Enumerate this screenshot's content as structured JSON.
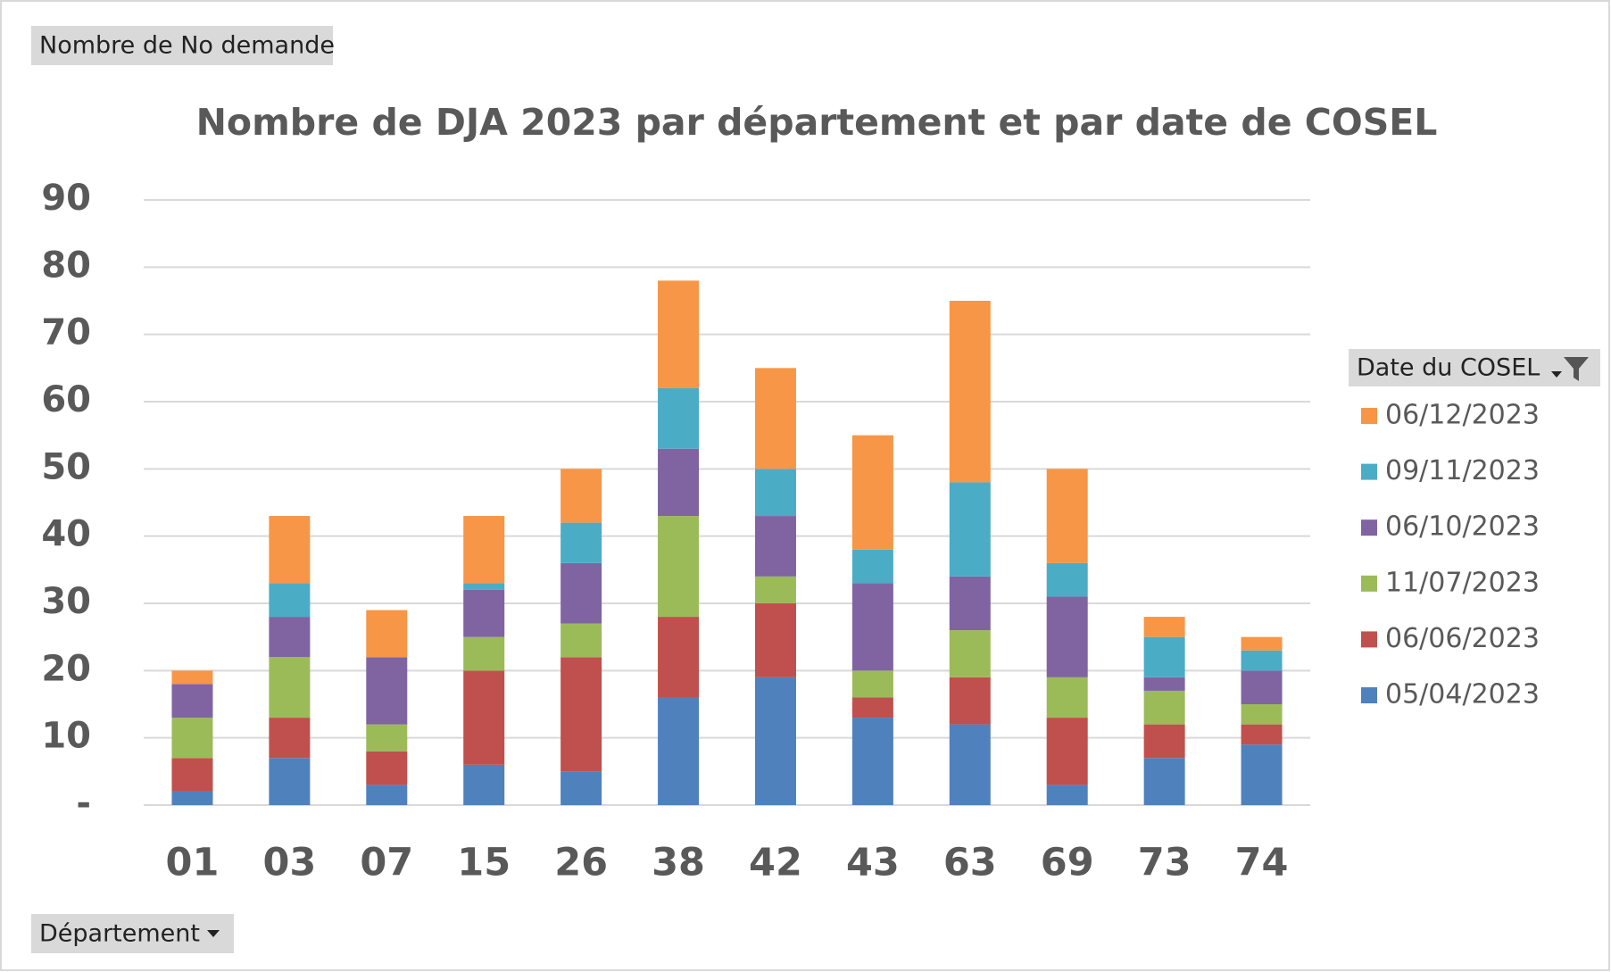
{
  "chart_data": {
    "type": "stacked_bar",
    "title": "Nombre de DJA 2023 par département et par date de COSEL",
    "data_field": "Nombre de No demande",
    "axis_field": "Département",
    "legend_title": "Date du COSEL",
    "categories": [
      "01",
      "03",
      "07",
      "15",
      "26",
      "38",
      "42",
      "43",
      "63",
      "69",
      "73",
      "74"
    ],
    "series": [
      {
        "name": "05/04/2023",
        "color": "#4f81bd",
        "values": [
          2,
          7,
          3,
          6,
          5,
          16,
          19,
          13,
          12,
          3,
          7,
          9
        ]
      },
      {
        "name": "06/06/2023",
        "color": "#c0504d",
        "values": [
          5,
          6,
          5,
          14,
          17,
          12,
          11,
          3,
          7,
          10,
          5,
          3
        ]
      },
      {
        "name": "11/07/2023",
        "color": "#9bbb59",
        "values": [
          6,
          9,
          4,
          5,
          5,
          15,
          4,
          4,
          7,
          6,
          5,
          3
        ]
      },
      {
        "name": "06/10/2023",
        "color": "#8064a2",
        "values": [
          5,
          6,
          10,
          7,
          9,
          10,
          9,
          13,
          8,
          12,
          2,
          5
        ]
      },
      {
        "name": "09/11/2023",
        "color": "#4bacc6",
        "values": [
          0,
          5,
          0,
          1,
          6,
          9,
          7,
          5,
          14,
          5,
          6,
          3
        ]
      },
      {
        "name": "06/12/2023",
        "color": "#f79646",
        "values": [
          2,
          10,
          7,
          10,
          8,
          16,
          15,
          17,
          27,
          14,
          3,
          2
        ]
      }
    ],
    "ylim": [
      0,
      90
    ],
    "yticks": [
      {
        "value": 0,
        "label": "-"
      },
      10,
      20,
      30,
      40,
      50,
      60,
      70,
      80,
      90
    ],
    "grid": true,
    "legend": "right"
  }
}
